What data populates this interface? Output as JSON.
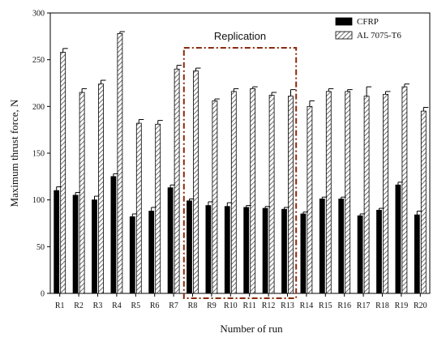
{
  "chart_data": {
    "type": "bar",
    "title": "",
    "xlabel": "Number of run",
    "ylabel": "Maximum thrust force, N",
    "ylim": [
      0,
      300
    ],
    "yticks": [
      0,
      50,
      100,
      150,
      200,
      250,
      300
    ],
    "categories": [
      "R1",
      "R2",
      "R3",
      "R4",
      "R5",
      "R6",
      "R7",
      "R8",
      "R9",
      "R10",
      "R11",
      "R12",
      "R13",
      "R14",
      "R15",
      "R16",
      "R17",
      "R18",
      "R19",
      "R20"
    ],
    "series": [
      {
        "name": "CFRP",
        "color": "#000000",
        "pattern": "solid",
        "values": [
          110,
          105,
          100,
          125,
          82,
          88,
          113,
          99,
          94,
          93,
          92,
          91,
          90,
          85,
          101,
          101,
          83,
          89,
          116,
          84
        ],
        "errors": [
          4,
          3,
          4,
          3,
          3,
          4,
          3,
          2,
          4,
          4,
          2,
          2,
          2,
          2,
          2,
          2,
          2,
          2,
          3,
          4
        ]
      },
      {
        "name": "AL 7075-T6",
        "color": "#9a9a9a",
        "pattern": "hatch",
        "values": [
          258,
          215,
          224,
          278,
          182,
          181,
          240,
          238,
          206,
          216,
          219,
          212,
          211,
          200,
          216,
          216,
          211,
          213,
          221,
          195
        ],
        "errors": [
          4,
          4,
          4,
          2,
          4,
          4,
          4,
          3,
          2,
          3,
          2,
          3,
          7,
          6,
          3,
          2,
          10,
          3,
          3,
          4
        ]
      }
    ],
    "legend": {
      "placement": "top-right"
    },
    "grid": false,
    "annotation": {
      "text": "Replication",
      "range": [
        "R8",
        "R13"
      ],
      "style": "dash-dot",
      "color": "#8b2a0e"
    }
  }
}
